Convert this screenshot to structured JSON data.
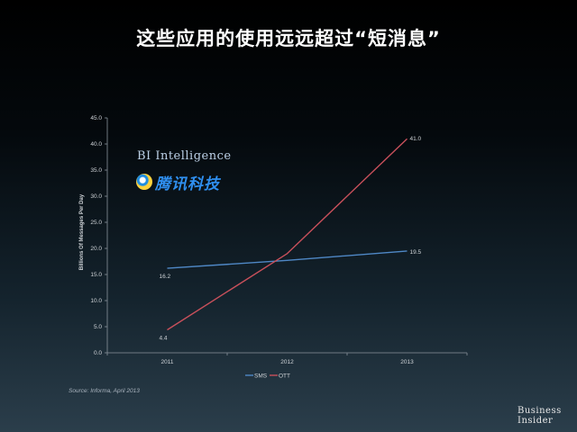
{
  "title": "这些应用的使用远远超过“短消息”",
  "watermarks": {
    "bi_intelligence": "BI Intelligence",
    "tencent_tech": "腾讯科技"
  },
  "source": "Source: Informa, April 2013",
  "logo": {
    "line1": "Business",
    "line2": "Insider"
  },
  "colors": {
    "sms": "#4f88c6",
    "ott": "#c8505b",
    "axis": "#8a939c",
    "text": "#d0d4d8"
  },
  "chart_data": {
    "type": "line",
    "x": [
      "2011",
      "2012",
      "2013"
    ],
    "ylabel": "Billions Of Messages Per Day",
    "xlabel": "",
    "ylim": [
      0,
      45
    ],
    "yticks": [
      "0.0",
      "5.0",
      "10.0",
      "15.0",
      "20.0",
      "25.0",
      "30.0",
      "35.0",
      "40.0",
      "45.0"
    ],
    "series": [
      {
        "name": "SMS",
        "values": [
          16.2,
          17.7,
          19.5
        ],
        "labels": [
          "16.2",
          "",
          "19.5"
        ],
        "color": "#4f88c6"
      },
      {
        "name": "OTT",
        "values": [
          4.4,
          19.0,
          41.0
        ],
        "labels": [
          "4.4",
          "",
          "41.0"
        ],
        "color": "#c8505b"
      }
    ],
    "legend": "bottom",
    "grid": false
  }
}
